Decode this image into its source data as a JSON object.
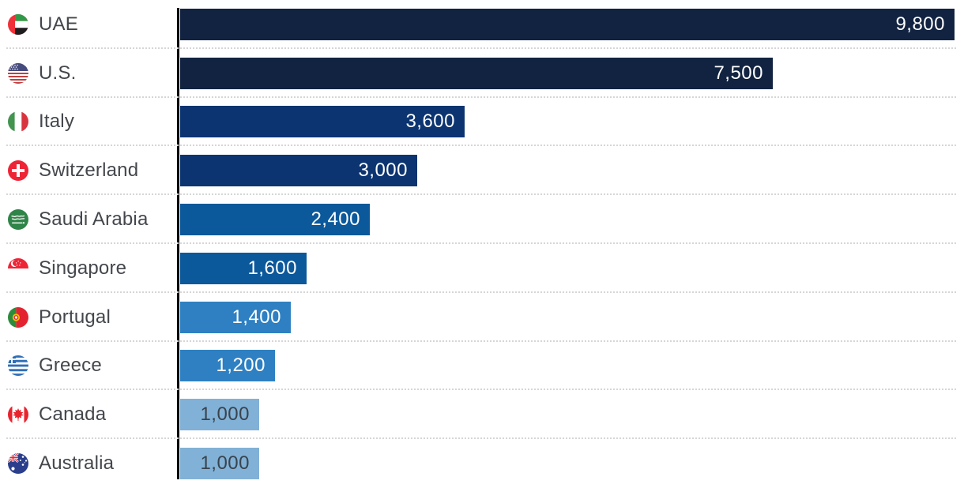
{
  "chart_data": {
    "type": "bar",
    "orientation": "horizontal",
    "categories": [
      "UAE",
      "U.S.",
      "Italy",
      "Switzerland",
      "Saudi Arabia",
      "Singapore",
      "Portugal",
      "Greece",
      "Canada",
      "Australia"
    ],
    "values": [
      9800,
      7500,
      3600,
      3000,
      2400,
      1600,
      1400,
      1200,
      1000,
      1000
    ],
    "value_labels": [
      "9,800",
      "7,500",
      "3,600",
      "3,000",
      "2,400",
      "1,600",
      "1,400",
      "1,200",
      "1,000",
      "1,000"
    ],
    "xlim": [
      0,
      9800
    ],
    "legend": "none",
    "gridlines": "dotted horizontal row separators",
    "axis_color": "#0c0c0c",
    "separator_color": "#d6d6d6",
    "country_label_color": "#43474c",
    "rows": [
      {
        "country": "UAE",
        "flag": "uae",
        "value": 9800,
        "value_label": "9,800",
        "bar_color": "#112340",
        "value_text_color": "#ffffff"
      },
      {
        "country": "U.S.",
        "flag": "us",
        "value": 7500,
        "value_label": "7,500",
        "bar_color": "#112340",
        "value_text_color": "#ffffff"
      },
      {
        "country": "Italy",
        "flag": "italy",
        "value": 3600,
        "value_label": "3,600",
        "bar_color": "#0b3470",
        "value_text_color": "#ffffff"
      },
      {
        "country": "Switzerland",
        "flag": "swiss",
        "value": 3000,
        "value_label": "3,000",
        "bar_color": "#0b3470",
        "value_text_color": "#ffffff"
      },
      {
        "country": "Saudi Arabia",
        "flag": "saudi",
        "value": 2400,
        "value_label": "2,400",
        "bar_color": "#0b589b",
        "value_text_color": "#ffffff"
      },
      {
        "country": "Singapore",
        "flag": "singapore",
        "value": 1600,
        "value_label": "1,600",
        "bar_color": "#0b589b",
        "value_text_color": "#ffffff"
      },
      {
        "country": "Portugal",
        "flag": "portugal",
        "value": 1400,
        "value_label": "1,400",
        "bar_color": "#2e80c2",
        "value_text_color": "#ffffff"
      },
      {
        "country": "Greece",
        "flag": "greece",
        "value": 1200,
        "value_label": "1,200",
        "bar_color": "#2e80c2",
        "value_text_color": "#ffffff"
      },
      {
        "country": "Canada",
        "flag": "canada",
        "value": 1000,
        "value_label": "1,000",
        "bar_color": "#81b1d6",
        "value_text_color": "#39434e"
      },
      {
        "country": "Australia",
        "flag": "australia",
        "value": 1000,
        "value_label": "1,000",
        "bar_color": "#81b1d6",
        "value_text_color": "#39434e"
      }
    ]
  }
}
